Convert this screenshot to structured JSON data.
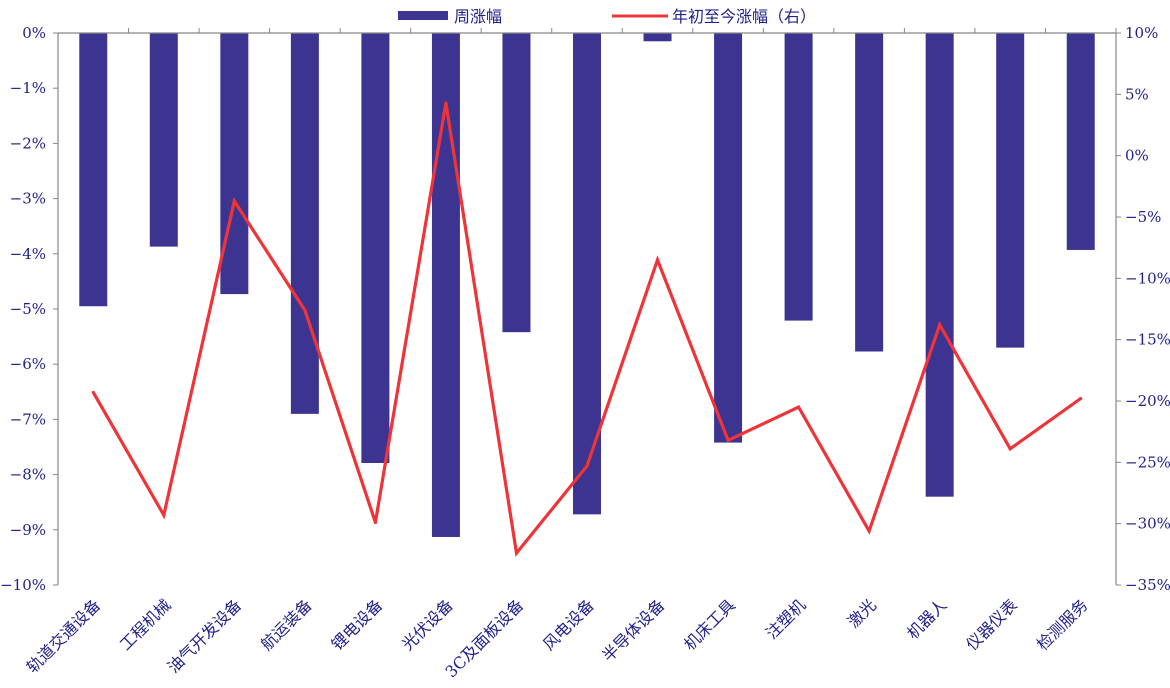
{
  "chart_data": {
    "type": "bar",
    "categories": [
      "轨道交通设备",
      "工程机械",
      "油气开发设备",
      "航运装备",
      "锂电设备",
      "光伏设备",
      "3C及面板设备",
      "风电设备",
      "半导体设备",
      "机床工具",
      "注塑机",
      "激光",
      "机器人",
      "仪器仪表",
      "检测服务"
    ],
    "series": [
      {
        "name": "周涨幅",
        "type": "bar",
        "axis": "left",
        "color": "#3d3491",
        "values": [
          -4.95,
          -3.87,
          -4.73,
          -6.9,
          -7.79,
          -9.13,
          -5.42,
          -8.72,
          -0.15,
          -7.42,
          -5.21,
          -5.77,
          -8.4,
          -5.7,
          -3.93
        ]
      },
      {
        "name": "年初至今涨幅（右）",
        "type": "line",
        "axis": "right",
        "color": "#ee3438",
        "values": [
          -19.3,
          -29.3,
          -3.7,
          -12.6,
          -29.9,
          4.3,
          -32.4,
          -25.3,
          -8.5,
          -23.2,
          -20.5,
          -30.6,
          -13.8,
          -23.9,
          -19.8
        ]
      }
    ],
    "y_left": {
      "min": -10,
      "max": 0,
      "step": 1,
      "unit": "%"
    },
    "y_right": {
      "min": -35,
      "max": 10,
      "step": 5,
      "unit": "%"
    },
    "legend": {
      "placement": "top-center"
    },
    "grid": false
  }
}
